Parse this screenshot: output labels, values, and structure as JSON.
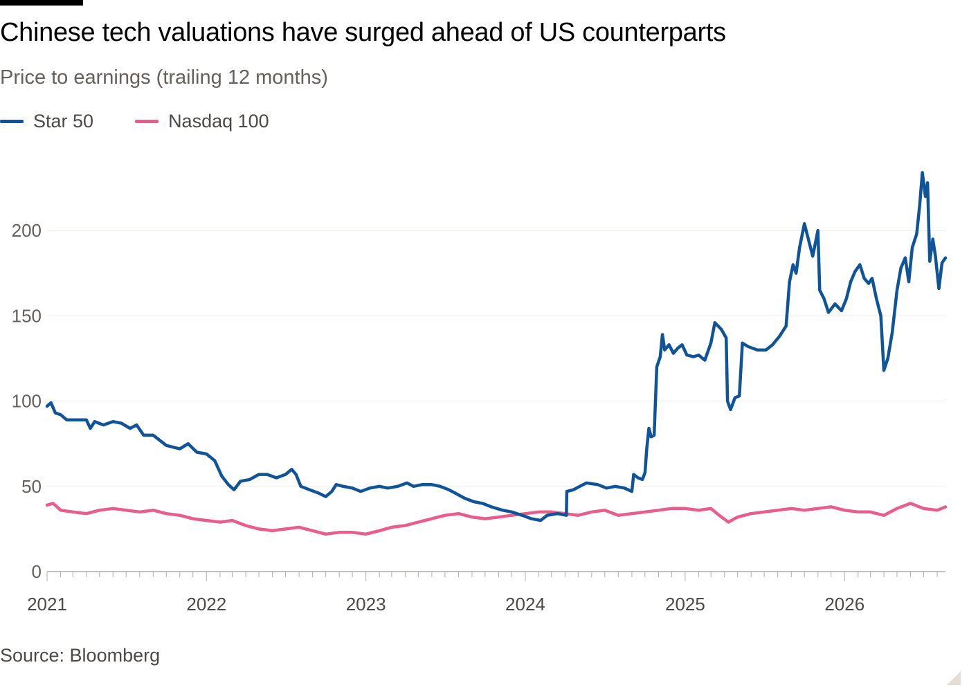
{
  "chart_data": {
    "type": "line",
    "title": "Chinese tech valuations have surged ahead of US counterparts",
    "subtitle": "Price to earnings (trailing 12 months)",
    "source": "Source: Bloomberg",
    "ylim": [
      0,
      240
    ],
    "y_ticks": [
      0,
      50,
      100,
      150,
      200
    ],
    "x_range": [
      "2021-01-01",
      "2026-08-20"
    ],
    "x_ticks": [
      "2021",
      "2022",
      "2023",
      "2024",
      "2025",
      "2026"
    ],
    "grid": "horizontal",
    "legend_position": "top-left",
    "series": [
      {
        "name": "Star 50",
        "color": "#0f5499",
        "points": [
          [
            "2021-01-01",
            97
          ],
          [
            "2021-01-10",
            99
          ],
          [
            "2021-01-20",
            93
          ],
          [
            "2021-02-01",
            92
          ],
          [
            "2021-02-15",
            89
          ],
          [
            "2021-03-10",
            89
          ],
          [
            "2021-04-01",
            89
          ],
          [
            "2021-04-10",
            84
          ],
          [
            "2021-04-20",
            88
          ],
          [
            "2021-05-10",
            86
          ],
          [
            "2021-06-01",
            88
          ],
          [
            "2021-06-20",
            87
          ],
          [
            "2021-07-10",
            84
          ],
          [
            "2021-07-25",
            86
          ],
          [
            "2021-08-10",
            80
          ],
          [
            "2021-09-01",
            80
          ],
          [
            "2021-10-01",
            74
          ],
          [
            "2021-11-01",
            72
          ],
          [
            "2021-11-20",
            75
          ],
          [
            "2021-12-10",
            70
          ],
          [
            "2022-01-01",
            69
          ],
          [
            "2022-01-20",
            65
          ],
          [
            "2022-02-05",
            56
          ],
          [
            "2022-02-20",
            51
          ],
          [
            "2022-03-05",
            48
          ],
          [
            "2022-03-20",
            53
          ],
          [
            "2022-04-10",
            54
          ],
          [
            "2022-05-01",
            57
          ],
          [
            "2022-05-20",
            57
          ],
          [
            "2022-06-10",
            55
          ],
          [
            "2022-07-01",
            57
          ],
          [
            "2022-07-15",
            60
          ],
          [
            "2022-07-25",
            57
          ],
          [
            "2022-08-05",
            50
          ],
          [
            "2022-08-25",
            48
          ],
          [
            "2022-09-15",
            46
          ],
          [
            "2022-10-01",
            44
          ],
          [
            "2022-10-15",
            47
          ],
          [
            "2022-10-25",
            51
          ],
          [
            "2022-11-10",
            50
          ],
          [
            "2022-12-01",
            49
          ],
          [
            "2022-12-20",
            47
          ],
          [
            "2023-01-10",
            49
          ],
          [
            "2023-02-01",
            50
          ],
          [
            "2023-02-20",
            49
          ],
          [
            "2023-03-15",
            50
          ],
          [
            "2023-04-05",
            52
          ],
          [
            "2023-04-20",
            50
          ],
          [
            "2023-05-10",
            51
          ],
          [
            "2023-06-01",
            51
          ],
          [
            "2023-06-20",
            50
          ],
          [
            "2023-07-10",
            48
          ],
          [
            "2023-07-25",
            46
          ],
          [
            "2023-08-15",
            43
          ],
          [
            "2023-09-05",
            41
          ],
          [
            "2023-09-25",
            40
          ],
          [
            "2023-10-15",
            38
          ],
          [
            "2023-11-10",
            36
          ],
          [
            "2023-12-01",
            35
          ],
          [
            "2023-12-25",
            33
          ],
          [
            "2024-01-15",
            31
          ],
          [
            "2024-02-05",
            30
          ],
          [
            "2024-02-20",
            33
          ],
          [
            "2024-03-15",
            34
          ],
          [
            "2024-04-04",
            33
          ],
          [
            "2024-04-05",
            47
          ],
          [
            "2024-04-20",
            48
          ],
          [
            "2024-05-05",
            50
          ],
          [
            "2024-05-20",
            52
          ],
          [
            "2024-06-15",
            51
          ],
          [
            "2024-07-05",
            49
          ],
          [
            "2024-07-25",
            50
          ],
          [
            "2024-08-15",
            49
          ],
          [
            "2024-09-01",
            47
          ],
          [
            "2024-09-05",
            57
          ],
          [
            "2024-09-15",
            55
          ],
          [
            "2024-09-25",
            54
          ],
          [
            "2024-10-01",
            58
          ],
          [
            "2024-10-05",
            72
          ],
          [
            "2024-10-10",
            84
          ],
          [
            "2024-10-15",
            79
          ],
          [
            "2024-10-22",
            80
          ],
          [
            "2024-10-28",
            120
          ],
          [
            "2024-11-05",
            126
          ],
          [
            "2024-11-10",
            139
          ],
          [
            "2024-11-15",
            130
          ],
          [
            "2024-11-25",
            133
          ],
          [
            "2024-12-05",
            128
          ],
          [
            "2024-12-15",
            131
          ],
          [
            "2024-12-25",
            133
          ],
          [
            "2025-01-05",
            127
          ],
          [
            "2025-01-20",
            126
          ],
          [
            "2025-02-01",
            127
          ],
          [
            "2025-02-15",
            124
          ],
          [
            "2025-03-01",
            134
          ],
          [
            "2025-03-10",
            146
          ],
          [
            "2025-03-25",
            142
          ],
          [
            "2025-04-05",
            137
          ],
          [
            "2025-04-08",
            100
          ],
          [
            "2025-04-15",
            95
          ],
          [
            "2025-04-25",
            102
          ],
          [
            "2025-05-05",
            103
          ],
          [
            "2025-05-12",
            134
          ],
          [
            "2025-05-25",
            132
          ],
          [
            "2025-06-15",
            130
          ],
          [
            "2025-07-05",
            130
          ],
          [
            "2025-07-20",
            133
          ],
          [
            "2025-08-05",
            138
          ],
          [
            "2025-08-20",
            144
          ],
          [
            "2025-08-28",
            170
          ],
          [
            "2025-09-05",
            180
          ],
          [
            "2025-09-12",
            175
          ],
          [
            "2025-09-20",
            190
          ],
          [
            "2025-10-01",
            204
          ],
          [
            "2025-10-10",
            195
          ],
          [
            "2025-10-20",
            185
          ],
          [
            "2025-11-01",
            200
          ],
          [
            "2025-11-05",
            165
          ],
          [
            "2025-11-15",
            160
          ],
          [
            "2025-11-25",
            152
          ],
          [
            "2025-12-10",
            157
          ],
          [
            "2025-12-25",
            153
          ],
          [
            "2026-01-05",
            160
          ],
          [
            "2026-01-15",
            170
          ],
          [
            "2026-01-25",
            176
          ],
          [
            "2026-02-05",
            180
          ],
          [
            "2026-02-15",
            172
          ],
          [
            "2026-02-25",
            169
          ],
          [
            "2026-03-05",
            172
          ],
          [
            "2026-03-15",
            160
          ],
          [
            "2026-03-25",
            150
          ],
          [
            "2026-04-01",
            118
          ],
          [
            "2026-04-10",
            125
          ],
          [
            "2026-04-20",
            140
          ],
          [
            "2026-05-01",
            165
          ],
          [
            "2026-05-10",
            178
          ],
          [
            "2026-05-20",
            184
          ],
          [
            "2026-05-28",
            170
          ],
          [
            "2026-06-05",
            190
          ],
          [
            "2026-06-15",
            198
          ],
          [
            "2026-06-22",
            215
          ],
          [
            "2026-06-28",
            234
          ],
          [
            "2026-07-05",
            220
          ],
          [
            "2026-07-10",
            228
          ],
          [
            "2026-07-15",
            182
          ],
          [
            "2026-07-22",
            195
          ],
          [
            "2026-07-28",
            185
          ],
          [
            "2026-08-05",
            166
          ],
          [
            "2026-08-12",
            181
          ],
          [
            "2026-08-20",
            184
          ]
        ]
      },
      {
        "name": "Nasdaq 100",
        "color": "#e95d8c",
        "points": [
          [
            "2021-01-01",
            39
          ],
          [
            "2021-01-15",
            40
          ],
          [
            "2021-02-01",
            36
          ],
          [
            "2021-03-01",
            35
          ],
          [
            "2021-04-01",
            34
          ],
          [
            "2021-05-01",
            36
          ],
          [
            "2021-06-01",
            37
          ],
          [
            "2021-07-01",
            36
          ],
          [
            "2021-08-01",
            35
          ],
          [
            "2021-09-01",
            36
          ],
          [
            "2021-10-01",
            34
          ],
          [
            "2021-11-01",
            33
          ],
          [
            "2021-12-01",
            31
          ],
          [
            "2022-01-01",
            30
          ],
          [
            "2022-02-01",
            29
          ],
          [
            "2022-03-01",
            30
          ],
          [
            "2022-04-01",
            27
          ],
          [
            "2022-05-01",
            25
          ],
          [
            "2022-06-01",
            24
          ],
          [
            "2022-07-01",
            25
          ],
          [
            "2022-08-01",
            26
          ],
          [
            "2022-09-01",
            24
          ],
          [
            "2022-10-01",
            22
          ],
          [
            "2022-11-01",
            23
          ],
          [
            "2022-12-01",
            23
          ],
          [
            "2023-01-01",
            22
          ],
          [
            "2023-02-01",
            24
          ],
          [
            "2023-03-01",
            26
          ],
          [
            "2023-04-01",
            27
          ],
          [
            "2023-05-01",
            29
          ],
          [
            "2023-06-01",
            31
          ],
          [
            "2023-07-01",
            33
          ],
          [
            "2023-08-01",
            34
          ],
          [
            "2023-09-01",
            32
          ],
          [
            "2023-10-01",
            31
          ],
          [
            "2023-11-01",
            32
          ],
          [
            "2023-12-01",
            33
          ],
          [
            "2024-01-01",
            34
          ],
          [
            "2024-02-01",
            35
          ],
          [
            "2024-03-01",
            35
          ],
          [
            "2024-04-01",
            34
          ],
          [
            "2024-05-01",
            33
          ],
          [
            "2024-06-01",
            35
          ],
          [
            "2024-07-01",
            36
          ],
          [
            "2024-08-01",
            33
          ],
          [
            "2024-09-01",
            34
          ],
          [
            "2024-10-01",
            35
          ],
          [
            "2024-11-01",
            36
          ],
          [
            "2024-12-01",
            37
          ],
          [
            "2025-01-01",
            37
          ],
          [
            "2025-02-01",
            36
          ],
          [
            "2025-03-01",
            37
          ],
          [
            "2025-03-20",
            33
          ],
          [
            "2025-04-10",
            29
          ],
          [
            "2025-05-01",
            32
          ],
          [
            "2025-06-01",
            34
          ],
          [
            "2025-07-01",
            35
          ],
          [
            "2025-08-01",
            36
          ],
          [
            "2025-09-01",
            37
          ],
          [
            "2025-10-01",
            36
          ],
          [
            "2025-11-01",
            37
          ],
          [
            "2025-12-01",
            38
          ],
          [
            "2026-01-01",
            36
          ],
          [
            "2026-02-01",
            35
          ],
          [
            "2026-03-01",
            35
          ],
          [
            "2026-04-01",
            33
          ],
          [
            "2026-05-01",
            37
          ],
          [
            "2026-06-01",
            40
          ],
          [
            "2026-07-01",
            37
          ],
          [
            "2026-08-01",
            36
          ],
          [
            "2026-08-20",
            38
          ]
        ]
      }
    ]
  }
}
